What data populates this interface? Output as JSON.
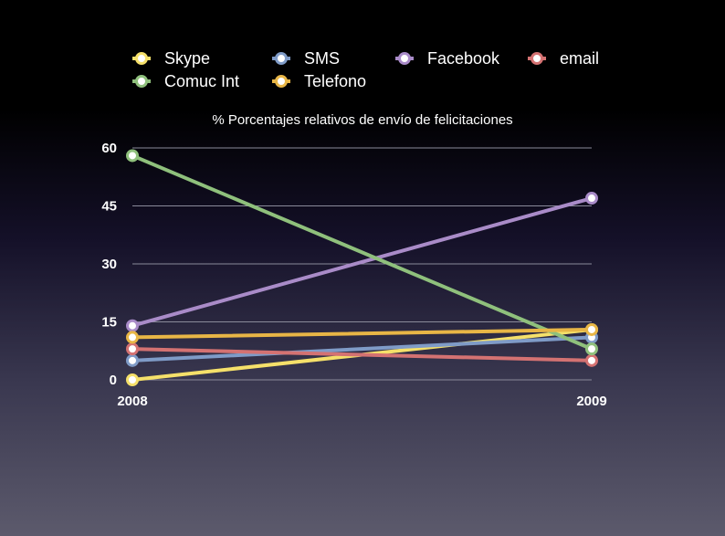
{
  "chart_data": {
    "type": "line",
    "title": "% Porcentajes relativos de envío de felicitaciones",
    "categories": [
      "2008",
      "2009"
    ],
    "ylim": [
      0,
      60
    ],
    "yticks": [
      0,
      15,
      30,
      45,
      60
    ],
    "grid": true,
    "legend_position": "top",
    "series": [
      {
        "name": "Skype",
        "color": "#f5e06a",
        "values": [
          0,
          13
        ]
      },
      {
        "name": "SMS",
        "color": "#7f9bc7",
        "values": [
          5,
          11
        ]
      },
      {
        "name": "Facebook",
        "color": "#a98bc8",
        "values": [
          14,
          47
        ]
      },
      {
        "name": "email",
        "color": "#d47272",
        "values": [
          8,
          5
        ]
      },
      {
        "name": "Comuc Int",
        "color": "#8fc07c",
        "values": [
          58,
          8
        ]
      },
      {
        "name": "Telefono",
        "color": "#e8b646",
        "values": [
          11,
          13
        ]
      }
    ]
  }
}
